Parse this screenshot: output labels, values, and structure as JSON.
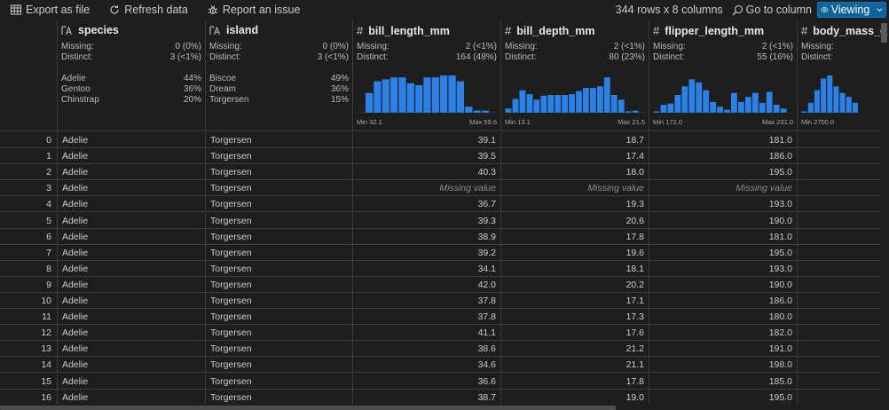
{
  "toolbar": {
    "export_label": "Export as file",
    "refresh_label": "Refresh data",
    "report_label": "Report an issue",
    "row_count": "344 rows x 8 columns",
    "goto_label": "Go to column",
    "view_label": "Viewing"
  },
  "columns": [
    {
      "name": "species",
      "type": "text",
      "missing_label": "Missing:",
      "missing": "0 (0%)",
      "distinct_label": "Distinct:",
      "distinct": "3 (<1%)",
      "top": [
        {
          "label": "Adelie",
          "pct": "44%"
        },
        {
          "label": "Gentoo",
          "pct": "36%"
        },
        {
          "label": "Chinstrap",
          "pct": "20%"
        }
      ]
    },
    {
      "name": "island",
      "type": "text",
      "missing_label": "Missing:",
      "missing": "0 (0%)",
      "distinct_label": "Distinct:",
      "distinct": "3 (<1%)",
      "top": [
        {
          "label": "Biscoe",
          "pct": "49%"
        },
        {
          "label": "Dream",
          "pct": "36%"
        },
        {
          "label": "Torgersen",
          "pct": "15%"
        }
      ]
    },
    {
      "name": "bill_length_mm",
      "type": "number",
      "missing_label": "Missing:",
      "missing": "2 (<1%)",
      "distinct_label": "Distinct:",
      "distinct": "164 (48%)",
      "min": "Min 32.1",
      "max": "Max 59.6",
      "hist": [
        0.05,
        0.55,
        0.85,
        0.9,
        0.95,
        0.95,
        0.8,
        0.75,
        0.95,
        0.95,
        1.0,
        1.0,
        0.85,
        0.2,
        0.1,
        0.1,
        0.05
      ]
    },
    {
      "name": "bill_depth_mm",
      "type": "number",
      "missing_label": "Missing:",
      "missing": "2 (<1%)",
      "distinct_label": "Distinct:",
      "distinct": "80 (23%)",
      "min": "Min 13.1",
      "max": "Max 21.5",
      "hist": [
        0.15,
        0.4,
        0.62,
        0.52,
        0.38,
        0.48,
        0.5,
        0.5,
        0.5,
        0.52,
        0.6,
        0.68,
        0.68,
        0.72,
        0.95,
        0.5,
        0.38,
        0.08,
        0.1,
        0.05
      ]
    },
    {
      "name": "flipper_length_mm",
      "type": "number",
      "missing_label": "Missing:",
      "missing": "2 (<1%)",
      "distinct_label": "Distinct:",
      "distinct": "55 (16%)",
      "min": "Min 172.0",
      "max": "Max 231.0",
      "hist": [
        0.08,
        0.25,
        0.28,
        0.5,
        0.72,
        0.9,
        0.82,
        0.62,
        0.32,
        0.2,
        0.12,
        0.55,
        0.32,
        0.45,
        0.55,
        0.3,
        0.58,
        0.25,
        0.15,
        0.05
      ]
    },
    {
      "name": "body_mass_g",
      "type": "number",
      "missing_label": "Missing:",
      "missing": "",
      "distinct_label": "Distinct:",
      "distinct": "",
      "min": "Min 2700.0",
      "max": "",
      "hist": [
        0.08,
        0.3,
        0.62,
        0.92,
        1.0,
        0.72,
        0.55,
        0.45,
        0.3
      ]
    }
  ],
  "rows": [
    {
      "idx": "0",
      "species": "Adelie",
      "island": "Torgersen",
      "bill_length": "39.1",
      "bill_depth": "18.7",
      "flipper": "181.0"
    },
    {
      "idx": "1",
      "species": "Adelie",
      "island": "Torgersen",
      "bill_length": "39.5",
      "bill_depth": "17.4",
      "flipper": "186.0"
    },
    {
      "idx": "2",
      "species": "Adelie",
      "island": "Torgersen",
      "bill_length": "40.3",
      "bill_depth": "18.0",
      "flipper": "195.0"
    },
    {
      "idx": "3",
      "species": "Adelie",
      "island": "Torgersen",
      "bill_length": "Missing value",
      "bill_depth": "Missing value",
      "flipper": "Missing value",
      "missing": true
    },
    {
      "idx": "4",
      "species": "Adelie",
      "island": "Torgersen",
      "bill_length": "36.7",
      "bill_depth": "19.3",
      "flipper": "193.0"
    },
    {
      "idx": "5",
      "species": "Adelie",
      "island": "Torgersen",
      "bill_length": "39.3",
      "bill_depth": "20.6",
      "flipper": "190.0"
    },
    {
      "idx": "6",
      "species": "Adelie",
      "island": "Torgersen",
      "bill_length": "38.9",
      "bill_depth": "17.8",
      "flipper": "181.0"
    },
    {
      "idx": "7",
      "species": "Adelie",
      "island": "Torgersen",
      "bill_length": "39.2",
      "bill_depth": "19.6",
      "flipper": "195.0"
    },
    {
      "idx": "8",
      "species": "Adelie",
      "island": "Torgersen",
      "bill_length": "34.1",
      "bill_depth": "18.1",
      "flipper": "193.0"
    },
    {
      "idx": "9",
      "species": "Adelie",
      "island": "Torgersen",
      "bill_length": "42.0",
      "bill_depth": "20.2",
      "flipper": "190.0"
    },
    {
      "idx": "10",
      "species": "Adelie",
      "island": "Torgersen",
      "bill_length": "37.8",
      "bill_depth": "17.1",
      "flipper": "186.0"
    },
    {
      "idx": "11",
      "species": "Adelie",
      "island": "Torgersen",
      "bill_length": "37.8",
      "bill_depth": "17.3",
      "flipper": "180.0"
    },
    {
      "idx": "12",
      "species": "Adelie",
      "island": "Torgersen",
      "bill_length": "41.1",
      "bill_depth": "17.6",
      "flipper": "182.0"
    },
    {
      "idx": "13",
      "species": "Adelie",
      "island": "Torgersen",
      "bill_length": "38.6",
      "bill_depth": "21.2",
      "flipper": "191.0"
    },
    {
      "idx": "14",
      "species": "Adelie",
      "island": "Torgersen",
      "bill_length": "34.6",
      "bill_depth": "21.1",
      "flipper": "198.0"
    },
    {
      "idx": "15",
      "species": "Adelie",
      "island": "Torgersen",
      "bill_length": "36.6",
      "bill_depth": "17.8",
      "flipper": "185.0"
    },
    {
      "idx": "16",
      "species": "Adelie",
      "island": "Torgersen",
      "bill_length": "38.7",
      "bill_depth": "19.0",
      "flipper": "195.0"
    }
  ]
}
